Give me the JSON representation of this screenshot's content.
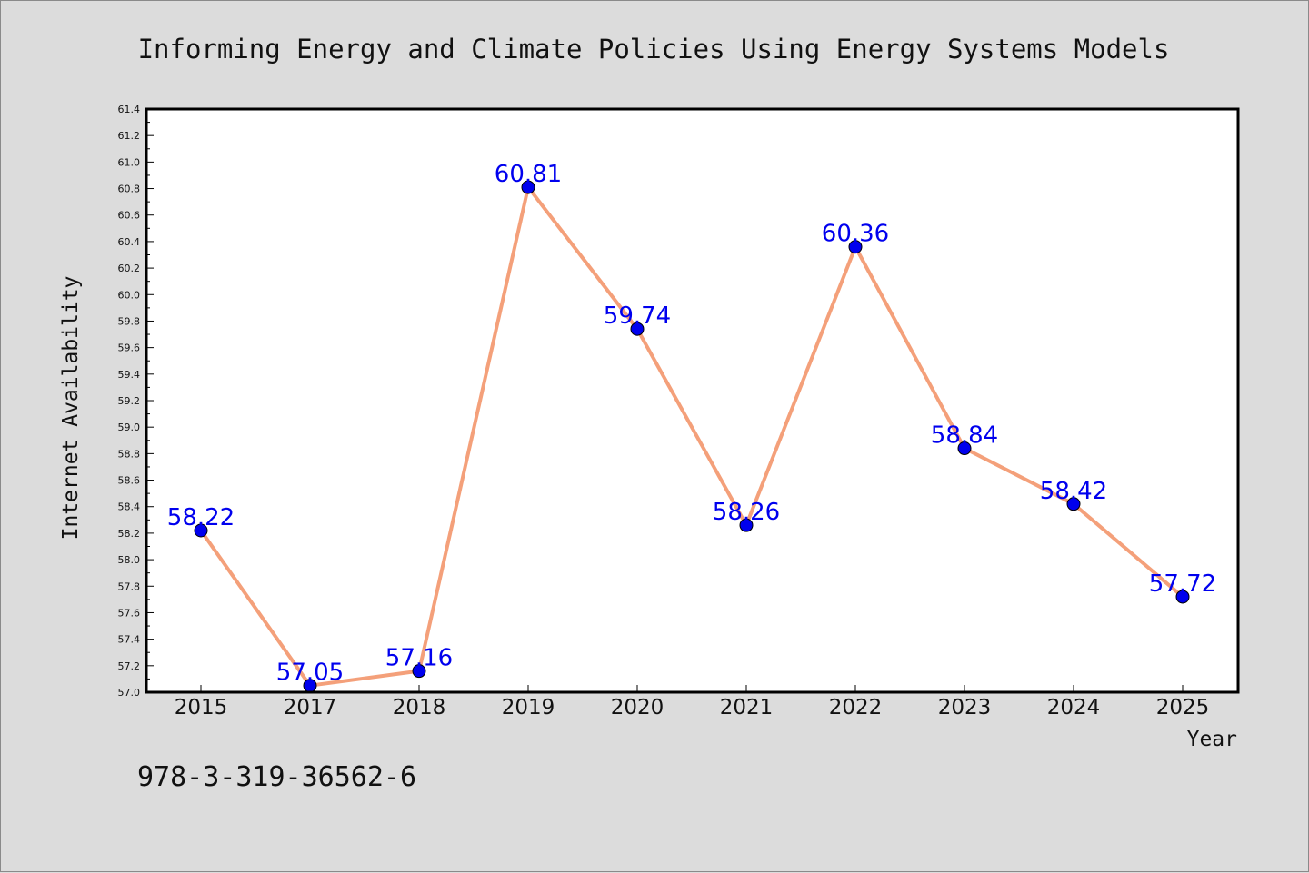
{
  "chart_data": {
    "type": "line",
    "title": "Informing Energy and Climate Policies Using Energy Systems Models",
    "xlabel": "Year",
    "ylabel": "Internet Availability",
    "categories": [
      "2015",
      "2017",
      "2018",
      "2019",
      "2020",
      "2021",
      "2022",
      "2023",
      "2024",
      "2025"
    ],
    "series": [
      {
        "values": [
          58.22,
          57.05,
          57.16,
          60.81,
          59.74,
          58.26,
          60.36,
          58.84,
          58.42,
          57.72
        ],
        "data_labels": [
          "58.22",
          "57.05",
          "57.16",
          "60.81",
          "59.74",
          "58.26",
          "60.36",
          "58.84",
          "58.42",
          "57.72"
        ]
      }
    ],
    "ylim": [
      57.0,
      61.4
    ],
    "yticks": [
      "57.0",
      "57.2",
      "57.4",
      "57.6",
      "57.8",
      "58.0",
      "58.2",
      "58.4",
      "58.6",
      "58.8",
      "59.0",
      "59.2",
      "59.4",
      "59.6",
      "59.8",
      "60.0",
      "60.2",
      "60.4",
      "60.6",
      "60.8",
      "61.0",
      "61.2",
      "61.4"
    ],
    "grid": false,
    "legend": "none",
    "colors": {
      "line": "#f4a07a",
      "marker": "#0000ee",
      "data_label": "#0000ee",
      "background": "#dcdcdc",
      "plot_background": "#ffffff"
    }
  },
  "footer": {
    "isbn": "978-3-319-36562-6"
  }
}
